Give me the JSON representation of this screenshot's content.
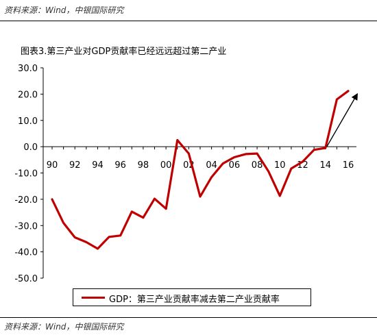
{
  "source_top": "资料来源：Wind，中银国际研究",
  "source_bottom": "资料来源：Wind，中银国际研究",
  "chart_data": {
    "type": "line",
    "title": "图表3.第三产业对GDP贡献率已经远远超过第二产业",
    "xlabel": "",
    "ylabel": "",
    "ylim": [
      -50,
      30
    ],
    "yticks": [
      "30.0",
      "20.0",
      "10.0",
      "0.0",
      "-10.0",
      "-20.0",
      "-30.0",
      "-40.0",
      "-50.0"
    ],
    "xticks": [
      "90",
      "92",
      "94",
      "96",
      "98",
      "00",
      "02",
      "04",
      "06",
      "08",
      "10",
      "12",
      "14",
      "16"
    ],
    "x": [
      1990,
      1991,
      1992,
      1993,
      1994,
      1995,
      1996,
      1997,
      1998,
      1999,
      2000,
      2001,
      2002,
      2003,
      2004,
      2005,
      2006,
      2007,
      2008,
      2009,
      2010,
      2011,
      2012,
      2013,
      2014,
      2015,
      2016
    ],
    "series": [
      {
        "name": "GDP：第三产业贡献率减去第二产业贡献率",
        "color": "#c00000",
        "values": [
          -20,
          -29,
          -34.5,
          -36.3,
          -38.8,
          -34.3,
          -33.8,
          -24.7,
          -27,
          -19.8,
          -23.6,
          2.5,
          -2.6,
          -19,
          -11.6,
          -6.4,
          -4,
          -2.8,
          -2.6,
          -9.4,
          -18.7,
          -8.3,
          -5.7,
          -1.2,
          -0.5,
          18,
          21.2
        ]
      }
    ],
    "annotation": "arrow-up-trend",
    "grid": false,
    "legend_position": "bottom"
  }
}
